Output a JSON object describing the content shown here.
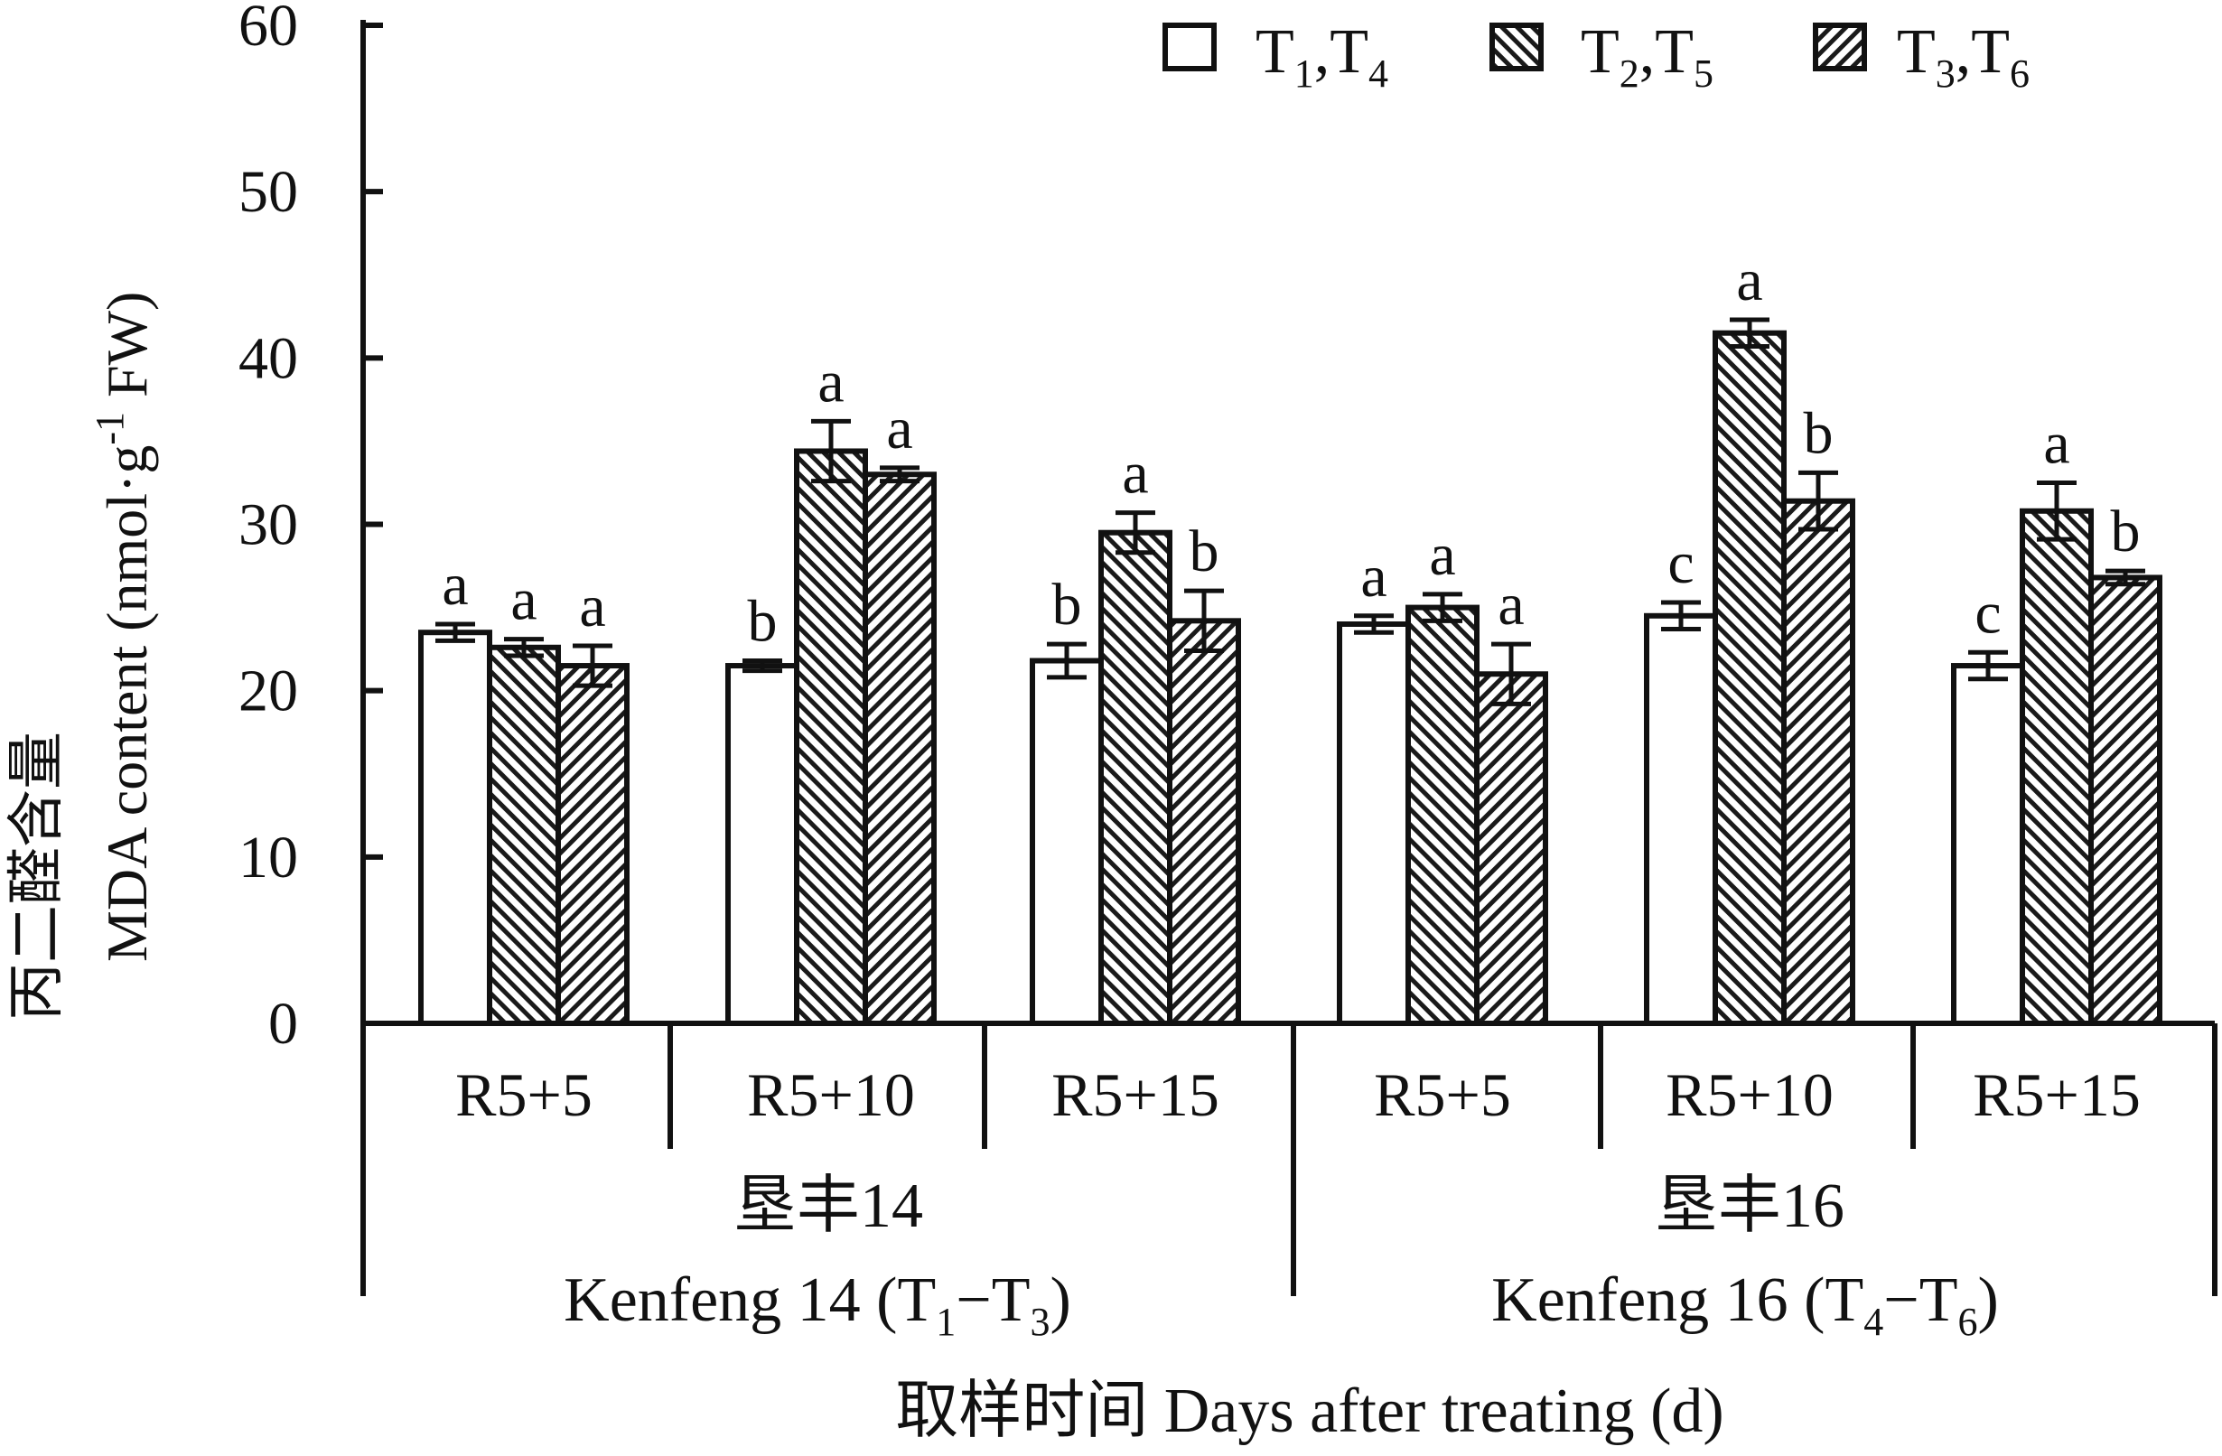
{
  "chart_data": {
    "type": "bar",
    "ylabel_cn": "丙二醛含量",
    "ylabel_en": "MDA content (nmol·g",
    "ylabel_sup": "-1",
    "ylabel_end": " FW)",
    "xlabel": "取样时间 Days after treating (d)",
    "ylim": [
      0,
      60
    ],
    "yticks": [
      0,
      10,
      20,
      30,
      40,
      50,
      60
    ],
    "legend": [
      {
        "label": "T",
        "sub1": "1",
        "sep": ",T",
        "sub2": "4",
        "pattern": "open"
      },
      {
        "label": "T",
        "sub1": "2",
        "sep": ",T",
        "sub2": "5",
        "pattern": "hatch-right"
      },
      {
        "label": "T",
        "sub1": "3",
        "sep": ",T",
        "sub2": "6",
        "pattern": "hatch-left"
      }
    ],
    "groups": [
      {
        "cultivar_cn": "垦丰14",
        "cultivar_en": "Kenfeng 14 (T",
        "range_sub1": "1",
        "range_mid": "−T",
        "range_sub2": "3",
        "range_end": ")",
        "categories": [
          "R5+5",
          "R5+10",
          "R5+15"
        ],
        "series": [
          {
            "values": [
              23.5,
              21.5,
              21.8
            ],
            "errors": [
              0.5,
              0.3,
              1.0
            ],
            "letters": [
              "a",
              "b",
              "b"
            ]
          },
          {
            "values": [
              22.6,
              34.4,
              29.5
            ],
            "errors": [
              0.5,
              1.8,
              1.2
            ],
            "letters": [
              "a",
              "a",
              "a"
            ]
          },
          {
            "values": [
              21.5,
              33.0,
              24.2
            ],
            "errors": [
              1.2,
              0.4,
              1.8
            ],
            "letters": [
              "a",
              "a",
              "b"
            ]
          }
        ]
      },
      {
        "cultivar_cn": "垦丰16",
        "cultivar_en": "Kenfeng 16 (T",
        "range_sub1": "4",
        "range_mid": "−T",
        "range_sub2": "6",
        "range_end": ")",
        "categories": [
          "R5+5",
          "R5+10",
          "R5+15"
        ],
        "series": [
          {
            "values": [
              24.0,
              24.5,
              21.5
            ],
            "errors": [
              0.5,
              0.8,
              0.8
            ],
            "letters": [
              "a",
              "c",
              "c"
            ]
          },
          {
            "values": [
              25.0,
              41.5,
              30.8
            ],
            "errors": [
              0.8,
              0.8,
              1.7
            ],
            "letters": [
              "a",
              "a",
              "a"
            ]
          },
          {
            "values": [
              21.0,
              31.4,
              26.8
            ],
            "errors": [
              1.8,
              1.7,
              0.4
            ],
            "letters": [
              "a",
              "b",
              "b"
            ]
          }
        ]
      }
    ]
  }
}
